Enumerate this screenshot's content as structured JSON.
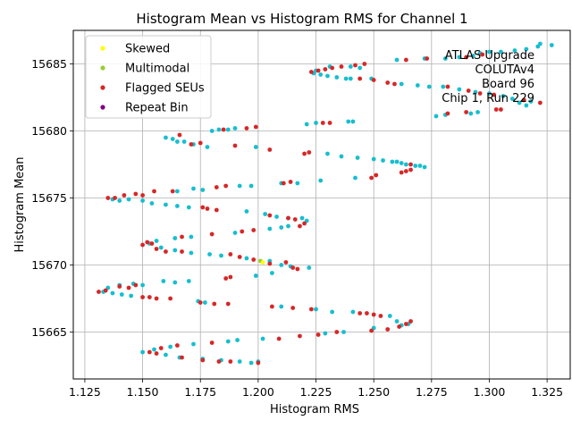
{
  "chart_data": {
    "type": "scatter",
    "title": "Histogram Mean vs Histogram RMS for Channel 1",
    "xlabel": "Histogram RMS",
    "ylabel": "Histogram Mean",
    "xlim": [
      1.12,
      1.335
    ],
    "ylim": [
      15661.5,
      15687.5
    ],
    "xticks": [
      "1.125",
      "1.150",
      "1.175",
      "1.200",
      "1.225",
      "1.250",
      "1.275",
      "1.300",
      "1.325"
    ],
    "yticks": [
      "15665",
      "15670",
      "15675",
      "15680",
      "15685"
    ],
    "grid": true,
    "legend_position": "top-left",
    "annotation": [
      "ATLAS Upgrade",
      "COLUTAv4",
      "Board 96",
      "Chip 1, Run 229"
    ],
    "series": [
      {
        "name": "Skewed",
        "color": "#ffff00",
        "points": [
          [
            1.202,
            15670.2
          ]
        ]
      },
      {
        "name": "Multimodal",
        "color": "#9acd32",
        "points": [
          [
            1.201,
            15670.3
          ]
        ]
      },
      {
        "name": "Flagged SEUs",
        "color": "#d62728",
        "points": [
          [
            1.223,
            15684.4
          ],
          [
            1.226,
            15684.5
          ],
          [
            1.229,
            15684.6
          ],
          [
            1.232,
            15684.7
          ],
          [
            1.236,
            15684.8
          ],
          [
            1.242,
            15684.9
          ],
          [
            1.246,
            15685.0
          ],
          [
            1.264,
            15685.3
          ],
          [
            1.273,
            15685.4
          ],
          [
            1.29,
            15685.5
          ],
          [
            1.297,
            15685.7
          ],
          [
            1.244,
            15683.9
          ],
          [
            1.25,
            15683.8
          ],
          [
            1.256,
            15683.6
          ],
          [
            1.259,
            15683.5
          ],
          [
            1.282,
            15683.3
          ],
          [
            1.291,
            15683.0
          ],
          [
            1.296,
            15682.8
          ],
          [
            1.302,
            15682.7
          ],
          [
            1.315,
            15682.3
          ],
          [
            1.322,
            15682.1
          ],
          [
            1.303,
            15681.6
          ],
          [
            1.305,
            15681.6
          ],
          [
            1.29,
            15681.4
          ],
          [
            1.282,
            15681.3
          ],
          [
            1.228,
            15680.6
          ],
          [
            1.231,
            15680.6
          ],
          [
            1.199,
            15680.3
          ],
          [
            1.195,
            15680.2
          ],
          [
            1.185,
            15680.1
          ],
          [
            1.166,
            15679.7
          ],
          [
            1.171,
            15679.0
          ],
          [
            1.175,
            15679.1
          ],
          [
            1.19,
            15678.9
          ],
          [
            1.205,
            15678.6
          ],
          [
            1.22,
            15678.3
          ],
          [
            1.222,
            15678.4
          ],
          [
            1.262,
            15676.9
          ],
          [
            1.264,
            15677.0
          ],
          [
            1.266,
            15677.1
          ],
          [
            1.249,
            15676.5
          ],
          [
            1.251,
            15676.7
          ],
          [
            1.266,
            15677.5
          ],
          [
            1.186,
            15675.9
          ],
          [
            1.182,
            15675.8
          ],
          [
            1.214,
            15676.2
          ],
          [
            1.211,
            15676.1
          ],
          [
            1.163,
            15675.5
          ],
          [
            1.155,
            15675.5
          ],
          [
            1.135,
            15675.0
          ],
          [
            1.138,
            15675.0
          ],
          [
            1.142,
            15675.2
          ],
          [
            1.147,
            15675.3
          ],
          [
            1.15,
            15675.2
          ],
          [
            1.176,
            15674.3
          ],
          [
            1.178,
            15674.2
          ],
          [
            1.182,
            15674.1
          ],
          [
            1.205,
            15673.7
          ],
          [
            1.213,
            15673.5
          ],
          [
            1.216,
            15673.4
          ],
          [
            1.218,
            15672.9
          ],
          [
            1.22,
            15673.1
          ],
          [
            1.18,
            15672.3
          ],
          [
            1.193,
            15672.5
          ],
          [
            1.198,
            15672.6
          ],
          [
            1.167,
            15672.1
          ],
          [
            1.15,
            15671.5
          ],
          [
            1.152,
            15671.7
          ],
          [
            1.154,
            15671.6
          ],
          [
            1.156,
            15671.2
          ],
          [
            1.16,
            15671.0
          ],
          [
            1.167,
            15671.0
          ],
          [
            1.188,
            15670.8
          ],
          [
            1.192,
            15670.6
          ],
          [
            1.198,
            15670.4
          ],
          [
            1.205,
            15670.1
          ],
          [
            1.212,
            15670.2
          ],
          [
            1.215,
            15669.8
          ],
          [
            1.217,
            15669.7
          ],
          [
            1.188,
            15669.1
          ],
          [
            1.186,
            15669.0
          ],
          [
            1.131,
            15668.0
          ],
          [
            1.134,
            15668.1
          ],
          [
            1.14,
            15668.4
          ],
          [
            1.144,
            15668.3
          ],
          [
            1.147,
            15668.5
          ],
          [
            1.15,
            15667.6
          ],
          [
            1.153,
            15667.6
          ],
          [
            1.156,
            15667.5
          ],
          [
            1.162,
            15667.5
          ],
          [
            1.175,
            15667.2
          ],
          [
            1.181,
            15667.1
          ],
          [
            1.187,
            15667.1
          ],
          [
            1.206,
            15666.9
          ],
          [
            1.215,
            15666.8
          ],
          [
            1.223,
            15666.7
          ],
          [
            1.244,
            15666.4
          ],
          [
            1.247,
            15666.4
          ],
          [
            1.25,
            15666.3
          ],
          [
            1.253,
            15666.2
          ],
          [
            1.266,
            15665.8
          ],
          [
            1.264,
            15665.6
          ],
          [
            1.261,
            15665.4
          ],
          [
            1.256,
            15665.2
          ],
          [
            1.249,
            15665.1
          ],
          [
            1.234,
            15665.0
          ],
          [
            1.226,
            15664.8
          ],
          [
            1.218,
            15664.7
          ],
          [
            1.209,
            15664.5
          ],
          [
            1.153,
            15663.5
          ],
          [
            1.156,
            15663.4
          ],
          [
            1.158,
            15663.8
          ],
          [
            1.165,
            15664.0
          ],
          [
            1.167,
            15663.1
          ],
          [
            1.18,
            15664.2
          ],
          [
            1.176,
            15662.9
          ],
          [
            1.183,
            15662.8
          ],
          [
            1.188,
            15662.8
          ],
          [
            1.2,
            15662.7
          ]
        ]
      },
      {
        "name": "Repeat Bin",
        "color": "#800080",
        "points": []
      },
      {
        "name": "",
        "color": "#17becf",
        "points": [
          [
            1.224,
            15684.3
          ],
          [
            1.227,
            15684.2
          ],
          [
            1.23,
            15684.1
          ],
          [
            1.234,
            15684.0
          ],
          [
            1.238,
            15683.9
          ],
          [
            1.24,
            15683.9
          ],
          [
            1.225,
            15684.5
          ],
          [
            1.231,
            15684.8
          ],
          [
            1.24,
            15684.8
          ],
          [
            1.244,
            15684.7
          ],
          [
            1.26,
            15685.3
          ],
          [
            1.272,
            15685.4
          ],
          [
            1.281,
            15685.4
          ],
          [
            1.287,
            15685.5
          ],
          [
            1.293,
            15685.6
          ],
          [
            1.296,
            15685.8
          ],
          [
            1.3,
            15685.9
          ],
          [
            1.305,
            15685.9
          ],
          [
            1.311,
            15686.0
          ],
          [
            1.316,
            15686.1
          ],
          [
            1.321,
            15686.3
          ],
          [
            1.322,
            15686.5
          ],
          [
            1.327,
            15686.4
          ],
          [
            1.249,
            15683.9
          ],
          [
            1.262,
            15683.5
          ],
          [
            1.269,
            15683.4
          ],
          [
            1.274,
            15683.3
          ],
          [
            1.28,
            15683.3
          ],
          [
            1.287,
            15683.1
          ],
          [
            1.294,
            15682.9
          ],
          [
            1.3,
            15682.8
          ],
          [
            1.306,
            15682.6
          ],
          [
            1.31,
            15682.4
          ],
          [
            1.313,
            15682.1
          ],
          [
            1.316,
            15681.9
          ],
          [
            1.318,
            15682.2
          ],
          [
            1.295,
            15681.4
          ],
          [
            1.292,
            15681.3
          ],
          [
            1.277,
            15681.1
          ],
          [
            1.281,
            15681.2
          ],
          [
            1.239,
            15680.7
          ],
          [
            1.241,
            15680.7
          ],
          [
            1.225,
            15680.6
          ],
          [
            1.221,
            15680.5
          ],
          [
            1.18,
            15680.0
          ],
          [
            1.183,
            15680.1
          ],
          [
            1.187,
            15680.1
          ],
          [
            1.19,
            15680.2
          ],
          [
            1.16,
            15679.5
          ],
          [
            1.163,
            15679.4
          ],
          [
            1.165,
            15679.2
          ],
          [
            1.168,
            15679.2
          ],
          [
            1.172,
            15679.0
          ],
          [
            1.178,
            15678.8
          ],
          [
            1.199,
            15678.8
          ],
          [
            1.23,
            15678.3
          ],
          [
            1.236,
            15678.1
          ],
          [
            1.243,
            15678.0
          ],
          [
            1.25,
            15677.9
          ],
          [
            1.254,
            15677.8
          ],
          [
            1.258,
            15677.7
          ],
          [
            1.26,
            15677.7
          ],
          [
            1.262,
            15677.6
          ],
          [
            1.264,
            15677.5
          ],
          [
            1.268,
            15677.4
          ],
          [
            1.27,
            15677.4
          ],
          [
            1.272,
            15677.3
          ],
          [
            1.242,
            15676.5
          ],
          [
            1.227,
            15676.3
          ],
          [
            1.21,
            15676.1
          ],
          [
            1.217,
            15676.1
          ],
          [
            1.197,
            15675.9
          ],
          [
            1.192,
            15675.9
          ],
          [
            1.176,
            15675.6
          ],
          [
            1.172,
            15675.7
          ],
          [
            1.165,
            15675.5
          ],
          [
            1.137,
            15674.9
          ],
          [
            1.14,
            15674.8
          ],
          [
            1.144,
            15674.9
          ],
          [
            1.15,
            15674.8
          ],
          [
            1.154,
            15674.6
          ],
          [
            1.16,
            15674.5
          ],
          [
            1.165,
            15674.4
          ],
          [
            1.17,
            15674.3
          ],
          [
            1.195,
            15674.0
          ],
          [
            1.203,
            15673.8
          ],
          [
            1.208,
            15673.6
          ],
          [
            1.213,
            15673.5
          ],
          [
            1.219,
            15673.5
          ],
          [
            1.221,
            15673.3
          ],
          [
            1.205,
            15672.7
          ],
          [
            1.21,
            15672.8
          ],
          [
            1.213,
            15672.9
          ],
          [
            1.19,
            15672.4
          ],
          [
            1.171,
            15672.1
          ],
          [
            1.164,
            15672.0
          ],
          [
            1.156,
            15671.8
          ],
          [
            1.153,
            15671.6
          ],
          [
            1.158,
            15671.3
          ],
          [
            1.164,
            15671.1
          ],
          [
            1.171,
            15670.9
          ],
          [
            1.179,
            15670.8
          ],
          [
            1.184,
            15670.7
          ],
          [
            1.195,
            15670.5
          ],
          [
            1.205,
            15670.3
          ],
          [
            1.21,
            15670.0
          ],
          [
            1.214,
            15669.9
          ],
          [
            1.222,
            15669.8
          ],
          [
            1.206,
            15669.4
          ],
          [
            1.199,
            15669.2
          ],
          [
            1.159,
            15668.8
          ],
          [
            1.164,
            15668.7
          ],
          [
            1.17,
            15668.8
          ],
          [
            1.133,
            15668.0
          ],
          [
            1.137,
            15667.9
          ],
          [
            1.141,
            15667.8
          ],
          [
            1.145,
            15667.7
          ],
          [
            1.135,
            15668.3
          ],
          [
            1.14,
            15668.5
          ],
          [
            1.146,
            15668.6
          ],
          [
            1.15,
            15668.5
          ],
          [
            1.174,
            15667.3
          ],
          [
            1.177,
            15667.2
          ],
          [
            1.21,
            15666.9
          ],
          [
            1.225,
            15666.7
          ],
          [
            1.232,
            15666.5
          ],
          [
            1.241,
            15666.5
          ],
          [
            1.257,
            15666.2
          ],
          [
            1.26,
            15665.8
          ],
          [
            1.262,
            15665.5
          ],
          [
            1.265,
            15665.6
          ],
          [
            1.25,
            15665.3
          ],
          [
            1.237,
            15665.0
          ],
          [
            1.229,
            15664.9
          ],
          [
            1.202,
            15664.5
          ],
          [
            1.191,
            15664.4
          ],
          [
            1.187,
            15664.3
          ],
          [
            1.172,
            15664.1
          ],
          [
            1.162,
            15663.9
          ],
          [
            1.155,
            15663.7
          ],
          [
            1.15,
            15663.5
          ],
          [
            1.16,
            15663.3
          ],
          [
            1.166,
            15663.1
          ],
          [
            1.176,
            15663.0
          ],
          [
            1.184,
            15662.9
          ],
          [
            1.192,
            15662.8
          ],
          [
            1.197,
            15662.7
          ],
          [
            1.2,
            15662.8
          ]
        ]
      }
    ]
  }
}
